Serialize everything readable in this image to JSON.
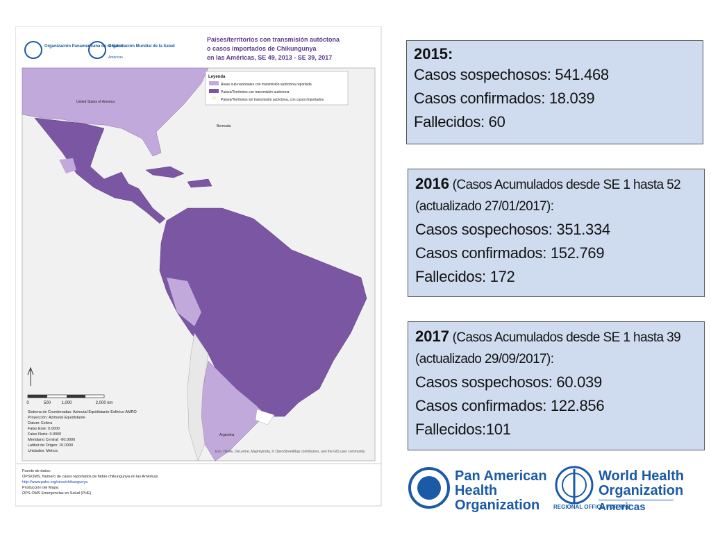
{
  "map": {
    "org1": "Organización Panamericana de la Salud",
    "org2": "Organización Mundial de la Salud",
    "org2_sub": "Américas",
    "title": [
      "Países/territorios con transmisión autóctona",
      "o casos importados de Chikungunya",
      "en las Américas, SE 49, 2013 - SE 39, 2017"
    ],
    "legend": {
      "title": "Leyenda",
      "items": [
        "Áreas sub-nacionales con transmisión autóctona reportada",
        "Países/Territorios con transmisión autóctona",
        "Países/Territorios sin transmisión autóctona, con casos importados"
      ]
    },
    "labels": [
      "United States of America",
      "Bermuda",
      "Argentina"
    ],
    "scale": [
      "0",
      "500",
      "1,000",
      "2,000 km"
    ],
    "projection": [
      "Sistema de Coordenadas: Azimutal Equidistante Esférico AMRO",
      "Proyección: Azimutal Equidistante",
      "Datum: Esfera",
      "Falso Este: 0.0000",
      "Falso Norte: 0.0000",
      "Meridiano Central: -80.0000",
      "Latitud de Origen: 10.0000",
      "Unidades: Metros"
    ],
    "attribution": "Esri, HERE, DeLorme, MapmyIndia, © OpenStreetMap contributors, and the GIS user community",
    "source": [
      "Fuente de datos:",
      "OPS/OMS. Número de casos reportados de fiebre chikungunya en las Américas",
      "http://www.paho.org/virus/chikungunya",
      "Producción del Mapa:",
      "OPS-OMS Emergencias en Salud (PHE)"
    ]
  },
  "boxes": [
    {
      "heading": "2015:",
      "lines": [
        "Casos sospechosos: 541.468",
        "Casos confirmados: 18.039",
        "Fallecidos: 60"
      ]
    },
    {
      "heading": "2016",
      "note": " (Casos Acumulados desde SE 1 hasta 52 (actualizado 27/01/2017):",
      "lines": [
        "Casos sospechosos: 351.334",
        "Casos confirmados: 152.769",
        "Fallecidos: 172"
      ]
    },
    {
      "heading": "2017",
      "note": " (Casos Acumulados desde SE 1 hasta 39 (actualizado 29/09/2017):",
      "lines": [
        "Casos sospechosos: 60.039",
        "Casos confirmados: 122.856",
        "Fallecidos:101"
      ]
    }
  ],
  "logos": {
    "paho": [
      "Pan American",
      "Health",
      "Organization"
    ],
    "who": [
      "World Health",
      "Organization"
    ],
    "who_sub": "REGIONAL OFFICE FOR THE",
    "who_region": "Americas"
  }
}
